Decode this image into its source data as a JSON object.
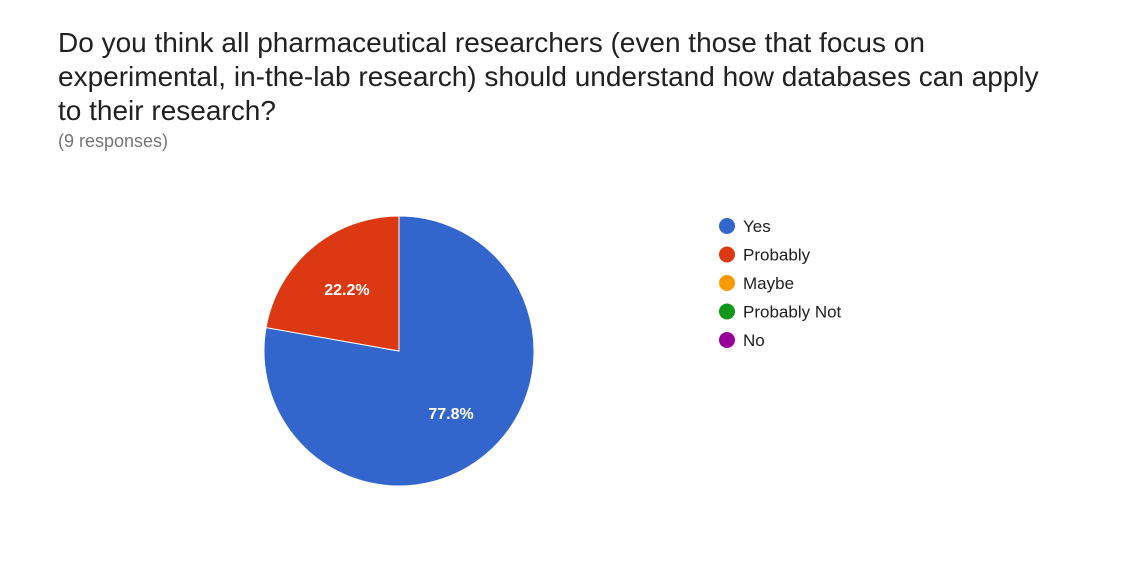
{
  "question": {
    "title": "Do you think all pharmaceutical researchers (even those that focus on experimental, in-the-lab research) should understand how databases can apply to their research?",
    "responses": "(9 responses)"
  },
  "chart_data": {
    "type": "pie",
    "title": "Do you think all pharmaceutical researchers (even those that focus on experimental, in-the-lab research) should understand how databases can apply to their research?",
    "total_responses": 9,
    "categories": [
      "Yes",
      "Probably",
      "Maybe",
      "Probably Not",
      "No"
    ],
    "values": [
      7,
      2,
      0,
      0,
      0
    ],
    "percent_labels": [
      "77.8%",
      "22.2%",
      "",
      "",
      ""
    ],
    "colors": [
      "#3366cc",
      "#dc3912",
      "#ff9900",
      "#109618",
      "#990099"
    ],
    "legend_position": "right",
    "start_angle_deg": 0,
    "direction": "clockwise"
  }
}
